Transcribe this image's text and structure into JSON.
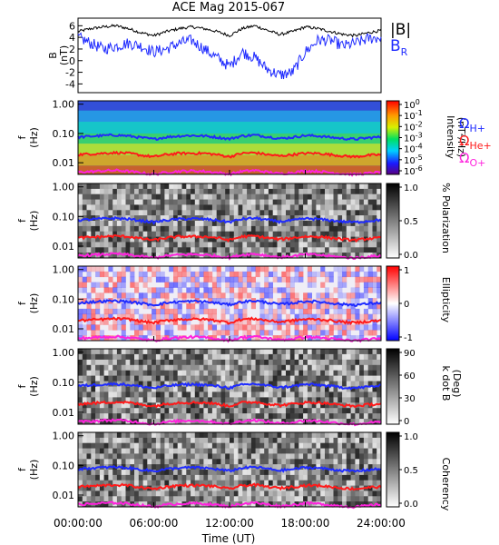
{
  "title": "ACE Mag 2015-067",
  "xlabel": "Time (UT)",
  "colors": {
    "black": "#000000",
    "blue": "#1f2bff",
    "red": "#ff1a1a",
    "magenta": "#ff22dd"
  },
  "panels": {
    "b": {
      "ylabel_main": "B",
      "ylabel_unit": "(nT)",
      "legend_total": "|B|",
      "legend_radial_main": "B",
      "legend_radial_sub": "R"
    },
    "intensity": {
      "label_main": "Intensity",
      "label_unit": "(nT²/Hz)",
      "colorbar": "rainbow"
    },
    "polarization": {
      "label": "% Polarization",
      "colorbar": "gray"
    },
    "ellipticity": {
      "label": "Ellipticity",
      "colorbar": "bluewhitered"
    },
    "kdotb": {
      "label_main": "k dot B",
      "label_unit": "(Deg)",
      "colorbar": "gray"
    },
    "coherency": {
      "label": "Coherency",
      "colorbar": "gray"
    }
  },
  "freq_axis_label_main": "f",
  "freq_axis_label_unit": "(Hz)",
  "gyro_legend": [
    {
      "omega": "Ω",
      "sub": "H+",
      "color": "#1f2bff"
    },
    {
      "omega": "Ω",
      "sub": "He+",
      "color": "#ff1a1a"
    },
    {
      "omega": "Ω",
      "sub": "O+",
      "color": "#ff22dd"
    }
  ],
  "chart_data": [
    {
      "type": "line",
      "panel": "magnetic_field",
      "ylabel": "B (nT)",
      "yticks": [
        "6",
        "4",
        "2",
        "0",
        "-2",
        "-4"
      ],
      "ylim": [
        -5.5,
        7.3
      ],
      "xlim_hours": [
        0,
        24
      ],
      "xticks": [
        "00:00:00",
        "06:00:00",
        "12:00:00",
        "18:00:00",
        "24:00:00"
      ],
      "x_hours": [
        0,
        1,
        2,
        3,
        4,
        5,
        6,
        7,
        8,
        9,
        10,
        11,
        12,
        13,
        14,
        15,
        16,
        17,
        18,
        19,
        20,
        21,
        22,
        23,
        24
      ],
      "series": [
        {
          "name": "|B|",
          "color": "#000000",
          "values": [
            5.0,
            5.5,
            5.8,
            6.0,
            5.5,
            4.8,
            4.3,
            5.0,
            5.5,
            5.8,
            5.5,
            5.0,
            4.3,
            5.5,
            6.0,
            5.2,
            4.5,
            5.0,
            5.8,
            5.5,
            5.0,
            4.5,
            4.3,
            4.8,
            5.2
          ]
        },
        {
          "name": "B_R",
          "color": "#1f2bff",
          "values": [
            4.0,
            3.0,
            2.0,
            2.5,
            3.0,
            2.5,
            1.5,
            2.0,
            3.0,
            3.5,
            2.0,
            0.5,
            -1.0,
            1.5,
            0.5,
            -1.5,
            -2.5,
            -2.0,
            1.5,
            3.5,
            3.5,
            2.5,
            3.0,
            3.8,
            4.0
          ]
        }
      ]
    },
    {
      "type": "heatmap",
      "panel": "intensity",
      "yscale": "log",
      "ylabel": "f (Hz)",
      "yticks": [
        "1.00",
        "0.10",
        "0.01"
      ],
      "ylim": [
        0.004,
        1.3
      ],
      "colorbar_label": "Intensity (nT²/Hz)",
      "colorbar_ticks": [
        {
          "base": "10",
          "exp": "0"
        },
        {
          "base": "10",
          "exp": "-1"
        },
        {
          "base": "10",
          "exp": "-2"
        },
        {
          "base": "10",
          "exp": "-3"
        },
        {
          "base": "10",
          "exp": "-4"
        },
        {
          "base": "10",
          "exp": "-5"
        },
        {
          "base": "10",
          "exp": "-6"
        }
      ],
      "colorbar_range_log10": [
        -6,
        0
      ]
    },
    {
      "type": "heatmap",
      "panel": "polarization",
      "yscale": "log",
      "ylabel": "f (Hz)",
      "yticks": [
        "1.00",
        "0.10",
        "0.01"
      ],
      "ylim": [
        0.004,
        1.3
      ],
      "colorbar_label": "% Polarization",
      "colorbar_ticks": [
        "1.0",
        "0.5",
        "0.0"
      ],
      "colorbar_range": [
        0,
        1
      ]
    },
    {
      "type": "heatmap",
      "panel": "ellipticity",
      "yscale": "log",
      "ylabel": "f (Hz)",
      "yticks": [
        "1.00",
        "0.10",
        "0.01"
      ],
      "ylim": [
        0.004,
        1.3
      ],
      "colorbar_label": "Ellipticity",
      "colorbar_ticks": [
        "1",
        "0",
        "-1"
      ],
      "colorbar_range": [
        -1,
        1
      ]
    },
    {
      "type": "heatmap",
      "panel": "kdotb",
      "yscale": "log",
      "ylabel": "f (Hz)",
      "yticks": [
        "1.00",
        "0.10",
        "0.01"
      ],
      "ylim": [
        0.004,
        1.3
      ],
      "colorbar_label": "k dot B (Deg)",
      "colorbar_ticks": [
        "90",
        "60",
        "30",
        "0"
      ],
      "colorbar_range": [
        0,
        90
      ]
    },
    {
      "type": "heatmap",
      "panel": "coherency",
      "yscale": "log",
      "ylabel": "f (Hz)",
      "yticks": [
        "1.00",
        "0.10",
        "0.01"
      ],
      "ylim": [
        0.004,
        1.3
      ],
      "colorbar_label": "Coherency",
      "colorbar_ticks": [
        "1.0",
        "0.5",
        "0.0"
      ],
      "colorbar_range": [
        0,
        1
      ]
    },
    {
      "type": "line",
      "panel": "gyrofrequency_overlays",
      "yscale": "log",
      "x_hours": [
        0,
        1,
        2,
        3,
        4,
        5,
        6,
        7,
        8,
        9,
        10,
        11,
        12,
        13,
        14,
        15,
        16,
        17,
        18,
        19,
        20,
        21,
        22,
        23,
        24
      ],
      "series": [
        {
          "name": "Ω H+",
          "color": "#1f2bff",
          "values": [
            0.075,
            0.08,
            0.085,
            0.088,
            0.082,
            0.072,
            0.064,
            0.075,
            0.082,
            0.085,
            0.082,
            0.074,
            0.065,
            0.082,
            0.088,
            0.077,
            0.067,
            0.074,
            0.085,
            0.082,
            0.074,
            0.067,
            0.064,
            0.071,
            0.076
          ]
        },
        {
          "name": "Ω He+",
          "color": "#ff1a1a",
          "values": [
            0.019,
            0.02,
            0.021,
            0.022,
            0.021,
            0.018,
            0.016,
            0.019,
            0.021,
            0.021,
            0.021,
            0.019,
            0.016,
            0.021,
            0.022,
            0.019,
            0.017,
            0.019,
            0.021,
            0.021,
            0.019,
            0.017,
            0.016,
            0.018,
            0.019
          ]
        },
        {
          "name": "Ω O+",
          "color": "#ff22dd",
          "values": [
            0.0048,
            0.005,
            0.0053,
            0.0055,
            0.0051,
            0.0045,
            0.004,
            0.0047,
            0.0051,
            0.0053,
            0.0051,
            0.0046,
            0.0041,
            0.0051,
            0.0055,
            0.0048,
            0.0042,
            0.0046,
            0.0053,
            0.0051,
            0.0046,
            0.0042,
            0.004,
            0.0044,
            0.0048
          ]
        }
      ]
    }
  ]
}
